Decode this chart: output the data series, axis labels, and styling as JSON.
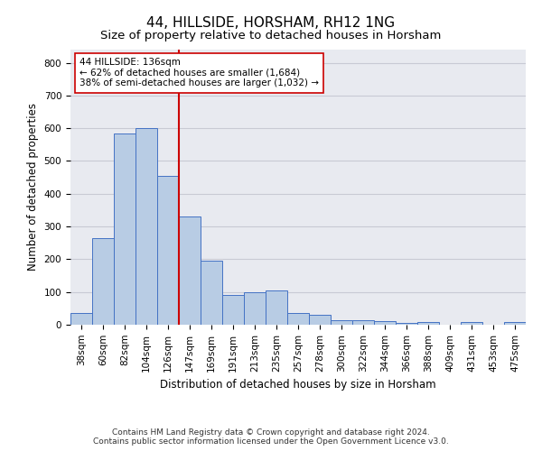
{
  "title": "44, HILLSIDE, HORSHAM, RH12 1NG",
  "subtitle": "Size of property relative to detached houses in Horsham",
  "xlabel": "Distribution of detached houses by size in Horsham",
  "ylabel": "Number of detached properties",
  "categories": [
    "38sqm",
    "60sqm",
    "82sqm",
    "104sqm",
    "126sqm",
    "147sqm",
    "169sqm",
    "191sqm",
    "213sqm",
    "235sqm",
    "257sqm",
    "278sqm",
    "300sqm",
    "322sqm",
    "344sqm",
    "366sqm",
    "388sqm",
    "409sqm",
    "431sqm",
    "453sqm",
    "475sqm"
  ],
  "values": [
    35,
    265,
    585,
    600,
    455,
    330,
    195,
    90,
    100,
    105,
    35,
    30,
    15,
    15,
    10,
    5,
    8,
    0,
    8,
    0,
    8
  ],
  "bar_color": "#b8cce4",
  "bar_edge_color": "#4472c4",
  "vline_color": "#cc0000",
  "annotation_text": "44 HILLSIDE: 136sqm\n← 62% of detached houses are smaller (1,684)\n38% of semi-detached houses are larger (1,032) →",
  "annotation_box_color": "#ffffff",
  "annotation_box_edge": "#cc0000",
  "ylim": [
    0,
    840
  ],
  "yticks": [
    0,
    100,
    200,
    300,
    400,
    500,
    600,
    700,
    800
  ],
  "grid_color": "#c8cad4",
  "bg_color": "#e8eaf0",
  "footer": "Contains HM Land Registry data © Crown copyright and database right 2024.\nContains public sector information licensed under the Open Government Licence v3.0.",
  "title_fontsize": 11,
  "subtitle_fontsize": 9.5,
  "axis_label_fontsize": 8.5,
  "tick_fontsize": 7.5,
  "footer_fontsize": 6.5
}
